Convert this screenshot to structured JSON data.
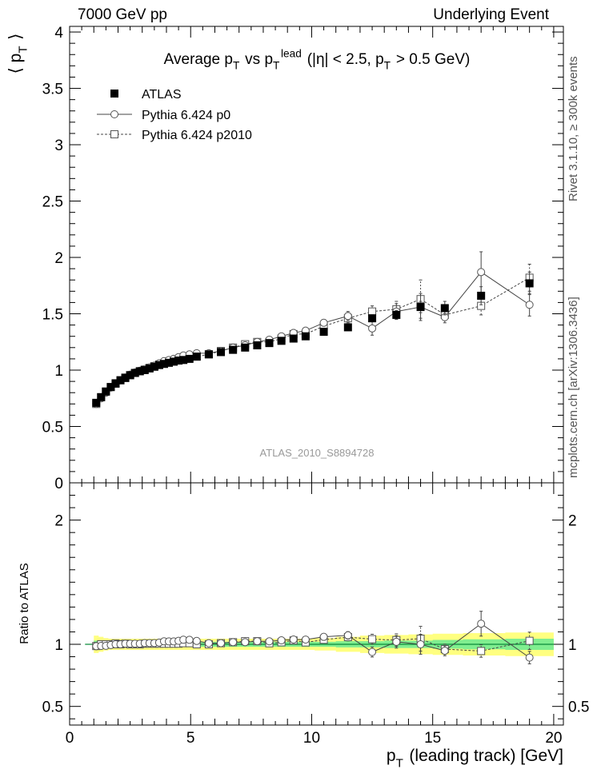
{
  "header": {
    "left": "7000 GeV pp",
    "right": "Underlying Event"
  },
  "side_labels": {
    "rivet": "Rivet 3.1.10, ≥ 300k events",
    "mcplots": "mcplots.cern.ch [arXiv:1306.3436]"
  },
  "colors": {
    "band_yellow": "#ffff80",
    "band_green": "#80ee90",
    "ref_line": "#0b8a3a",
    "axis": "#000000",
    "watermark": "#999999"
  },
  "chart_data": [
    {
      "type": "scatter",
      "panel": "main",
      "title": "Average p_T vs p_T^lead (|η| < 2.5, p_T > 0.5 GeV)",
      "ylabel": "⟨ p_T ⟩",
      "ylim": [
        0,
        4.05
      ],
      "xlim": [
        0,
        20.4
      ],
      "watermark": "ATLAS_2010_S8894728",
      "legend": {
        "placement": "top-left",
        "entries": [
          "ATLAS",
          "Pythia 6.424 p0",
          "Pythia 6.424 p2010"
        ]
      },
      "x_ticks": [
        0,
        5,
        10,
        15,
        20
      ],
      "y_ticks": [
        0,
        0.5,
        1,
        1.5,
        2,
        2.5,
        3,
        3.5,
        4
      ],
      "x": [
        1.1,
        1.3,
        1.5,
        1.7,
        1.9,
        2.1,
        2.3,
        2.5,
        2.7,
        2.9,
        3.1,
        3.3,
        3.5,
        3.7,
        3.9,
        4.1,
        4.3,
        4.5,
        4.7,
        4.95,
        5.25,
        5.75,
        6.25,
        6.75,
        7.25,
        7.75,
        8.25,
        8.75,
        9.25,
        9.75,
        10.5,
        11.5,
        12.5,
        13.5,
        14.5,
        15.5,
        17,
        19
      ],
      "series": [
        {
          "name": "ATLAS",
          "marker": "filled-square",
          "values": [
            0.71,
            0.76,
            0.81,
            0.85,
            0.88,
            0.91,
            0.93,
            0.955,
            0.975,
            0.99,
            1.0,
            1.015,
            1.03,
            1.045,
            1.055,
            1.065,
            1.075,
            1.085,
            1.09,
            1.1,
            1.12,
            1.14,
            1.16,
            1.18,
            1.2,
            1.22,
            1.24,
            1.26,
            1.28,
            1.3,
            1.34,
            1.38,
            1.46,
            1.49,
            1.56,
            1.55,
            1.66,
            1.77
          ],
          "err": [
            0.02,
            0.02,
            0.02,
            0.02,
            0.02,
            0.02,
            0.02,
            0.02,
            0.02,
            0.02,
            0.02,
            0.02,
            0.02,
            0.02,
            0.02,
            0.02,
            0.02,
            0.02,
            0.02,
            0.02,
            0.02,
            0.02,
            0.02,
            0.02,
            0.02,
            0.02,
            0.02,
            0.02,
            0.02,
            0.02,
            0.02,
            0.03,
            0.03,
            0.04,
            0.05,
            0.06,
            0.08,
            0.1
          ]
        },
        {
          "name": "Pythia 6.424 p0",
          "marker": "open-circle",
          "line": "solid",
          "values": [
            0.7,
            0.75,
            0.8,
            0.845,
            0.88,
            0.91,
            0.935,
            0.96,
            0.98,
            0.995,
            1.01,
            1.025,
            1.04,
            1.06,
            1.08,
            1.09,
            1.1,
            1.115,
            1.13,
            1.14,
            1.15,
            1.15,
            1.17,
            1.2,
            1.22,
            1.25,
            1.27,
            1.3,
            1.33,
            1.35,
            1.42,
            1.48,
            1.37,
            1.52,
            1.56,
            1.47,
            1.87,
            1.58
          ],
          "err": [
            0.01,
            0.01,
            0.01,
            0.01,
            0.01,
            0.01,
            0.01,
            0.01,
            0.01,
            0.01,
            0.01,
            0.01,
            0.01,
            0.01,
            0.01,
            0.01,
            0.01,
            0.01,
            0.01,
            0.01,
            0.01,
            0.01,
            0.01,
            0.01,
            0.02,
            0.02,
            0.02,
            0.02,
            0.03,
            0.03,
            0.03,
            0.04,
            0.06,
            0.07,
            0.12,
            0.05,
            0.18,
            0.1
          ]
        },
        {
          "name": "Pythia 6.424 p2010",
          "marker": "open-square",
          "line": "dashed",
          "values": [
            0.7,
            0.76,
            0.81,
            0.85,
            0.885,
            0.91,
            0.935,
            0.955,
            0.975,
            0.99,
            1.005,
            1.02,
            1.035,
            1.05,
            1.06,
            1.07,
            1.08,
            1.09,
            1.1,
            1.11,
            1.12,
            1.14,
            1.17,
            1.2,
            1.23,
            1.25,
            1.25,
            1.28,
            1.32,
            1.32,
            1.39,
            1.46,
            1.52,
            1.54,
            1.63,
            1.49,
            1.57,
            1.82
          ],
          "err": [
            0.01,
            0.01,
            0.01,
            0.01,
            0.01,
            0.01,
            0.01,
            0.01,
            0.01,
            0.01,
            0.01,
            0.01,
            0.01,
            0.01,
            0.01,
            0.01,
            0.01,
            0.01,
            0.01,
            0.01,
            0.01,
            0.01,
            0.01,
            0.01,
            0.02,
            0.02,
            0.02,
            0.02,
            0.03,
            0.03,
            0.03,
            0.04,
            0.05,
            0.07,
            0.17,
            0.05,
            0.08,
            0.12
          ]
        }
      ]
    },
    {
      "type": "scatter",
      "panel": "ratio",
      "ylabel": "Ratio to ATLAS",
      "xlabel": "p_T (leading track) [GeV]",
      "ylim": [
        0.35,
        2.3
      ],
      "xlim": [
        0,
        20.4
      ],
      "x_ticks": [
        0,
        5,
        10,
        15,
        20
      ],
      "y_ticks": [
        0.5,
        1,
        2
      ],
      "x": [
        1.1,
        1.3,
        1.5,
        1.7,
        1.9,
        2.1,
        2.3,
        2.5,
        2.7,
        2.9,
        3.1,
        3.3,
        3.5,
        3.7,
        3.9,
        4.1,
        4.3,
        4.5,
        4.7,
        4.95,
        5.25,
        5.75,
        6.25,
        6.75,
        7.25,
        7.75,
        8.25,
        8.75,
        9.25,
        9.75,
        10.5,
        11.5,
        12.5,
        13.5,
        14.5,
        15.5,
        17,
        19
      ],
      "band": {
        "inner": [
          0.03,
          0.03,
          0.025,
          0.02,
          0.02,
          0.02,
          0.02,
          0.02,
          0.02,
          0.02,
          0.02,
          0.02,
          0.02,
          0.02,
          0.02,
          0.02,
          0.02,
          0.02,
          0.02,
          0.02,
          0.02,
          0.02,
          0.02,
          0.02,
          0.02,
          0.02,
          0.02,
          0.02,
          0.02,
          0.02,
          0.02,
          0.025,
          0.025,
          0.03,
          0.03,
          0.035,
          0.04,
          0.045
        ],
        "outer": [
          0.07,
          0.06,
          0.05,
          0.045,
          0.045,
          0.045,
          0.045,
          0.045,
          0.045,
          0.045,
          0.045,
          0.045,
          0.045,
          0.045,
          0.045,
          0.045,
          0.045,
          0.045,
          0.045,
          0.045,
          0.045,
          0.045,
          0.045,
          0.045,
          0.045,
          0.045,
          0.045,
          0.045,
          0.045,
          0.045,
          0.05,
          0.06,
          0.07,
          0.075,
          0.08,
          0.085,
          0.09,
          0.095
        ]
      },
      "series": [
        {
          "name": "Pythia 6.424 p0",
          "marker": "open-circle",
          "line": "solid",
          "values": [
            0.985,
            0.987,
            0.988,
            0.994,
            1.0,
            1.0,
            1.005,
            1.005,
            1.005,
            1.005,
            1.01,
            1.01,
            1.01,
            1.014,
            1.024,
            1.023,
            1.023,
            1.028,
            1.037,
            1.036,
            1.027,
            1.009,
            1.009,
            1.017,
            1.017,
            1.025,
            1.024,
            1.032,
            1.039,
            1.038,
            1.06,
            1.072,
            0.938,
            1.02,
            1.0,
            0.948,
            1.166,
            0.893
          ],
          "err": [
            0.01,
            0.01,
            0.01,
            0.01,
            0.01,
            0.01,
            0.01,
            0.01,
            0.01,
            0.01,
            0.01,
            0.01,
            0.01,
            0.01,
            0.01,
            0.01,
            0.01,
            0.01,
            0.01,
            0.01,
            0.01,
            0.01,
            0.01,
            0.01,
            0.015,
            0.015,
            0.015,
            0.015,
            0.02,
            0.02,
            0.02,
            0.03,
            0.04,
            0.05,
            0.08,
            0.04,
            0.1,
            0.05
          ]
        },
        {
          "name": "Pythia 6.424 p2010",
          "marker": "open-square",
          "line": "dashed",
          "values": [
            0.986,
            1.0,
            1.0,
            1.0,
            1.006,
            1.0,
            1.005,
            1.0,
            1.0,
            1.0,
            1.005,
            1.005,
            1.005,
            1.005,
            1.005,
            1.005,
            1.005,
            1.005,
            1.009,
            1.009,
            1.0,
            1.0,
            1.009,
            1.017,
            1.025,
            1.025,
            1.008,
            1.016,
            1.031,
            1.015,
            1.037,
            1.058,
            1.041,
            1.034,
            1.045,
            0.961,
            0.946,
            1.028
          ],
          "err": [
            0.01,
            0.01,
            0.01,
            0.01,
            0.01,
            0.01,
            0.01,
            0.01,
            0.01,
            0.01,
            0.01,
            0.01,
            0.01,
            0.01,
            0.01,
            0.01,
            0.01,
            0.01,
            0.01,
            0.01,
            0.01,
            0.01,
            0.01,
            0.01,
            0.015,
            0.015,
            0.015,
            0.015,
            0.02,
            0.02,
            0.02,
            0.03,
            0.04,
            0.05,
            0.1,
            0.04,
            0.05,
            0.07
          ]
        }
      ]
    }
  ]
}
